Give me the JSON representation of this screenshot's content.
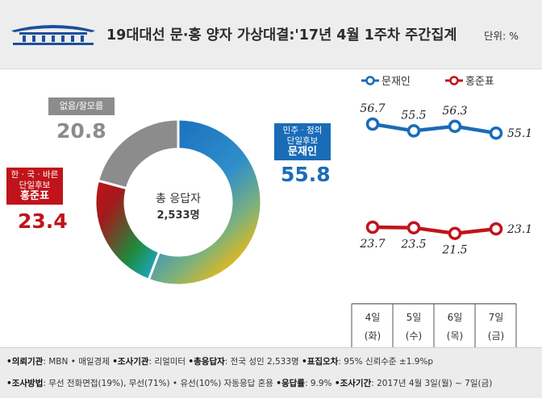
{
  "header": {
    "title": "19대대선 문·홍 양자 가상대결:'17년 4월 1주차 주간집계",
    "unit": "단위: %"
  },
  "donut": {
    "center_label": "총 응답자",
    "center_count": "2,533명",
    "moon": {
      "party": "민주 · 정의",
      "role": "단일후보",
      "name": "문재인",
      "value": "55.8"
    },
    "hong": {
      "party": "한 · 국 · 바른",
      "role": "단일후보",
      "name": "홍준표",
      "value": "23.4"
    },
    "none": {
      "label": "없음/잘모름",
      "value": "20.8"
    }
  },
  "chart_data": [
    {
      "type": "pie",
      "categories": [
        "문재인",
        "홍준표",
        "없음/잘모름"
      ],
      "values": [
        55.8,
        23.4,
        20.8
      ]
    },
    {
      "type": "line",
      "categories": [
        "4일 (화)",
        "5일 (수)",
        "6일 (목)",
        "7일 (금)"
      ],
      "series": [
        {
          "name": "문재인",
          "values": [
            56.7,
            55.5,
            56.3,
            55.1
          ],
          "color": "#1a6cb7"
        },
        {
          "name": "홍준표",
          "values": [
            23.7,
            23.5,
            21.5,
            23.1
          ],
          "color": "#c0141b"
        }
      ],
      "ylim": [
        0,
        100
      ]
    }
  ],
  "xaxis_labels": [
    {
      "day": "4일",
      "wd": "(화)"
    },
    {
      "day": "5일",
      "wd": "(수)"
    },
    {
      "day": "6일",
      "wd": "(목)"
    },
    {
      "day": "7일",
      "wd": "(금)"
    }
  ],
  "footer": {
    "line1": [
      {
        "k": "•의뢰기관",
        "v": ": MBN • 매일경제"
      },
      {
        "k": "•조사기관",
        "v": ": 리얼미터"
      },
      {
        "k": "•총응답자",
        "v": ": 전국 성인 2,533명"
      },
      {
        "k": "•표집오차",
        "v": ": 95% 신뢰수준 ±1.9%p"
      }
    ],
    "line2": [
      {
        "k": "•조사방법",
        "v": ": 무선 전화면접(19%), 무선(71%) • 유선(10%) 자동응답 혼용"
      },
      {
        "k": "•응답률",
        "v": ": 9.9%"
      },
      {
        "k": "•조사기간",
        "v": ": 2017년 4월 3일(월) ~ 7일(금)"
      }
    ]
  },
  "colors": {
    "moon": "#1a6cb7",
    "hong": "#c0141b",
    "none": "#8c8c8c",
    "gold": "#e8b713",
    "green": "#1f8a3c"
  }
}
